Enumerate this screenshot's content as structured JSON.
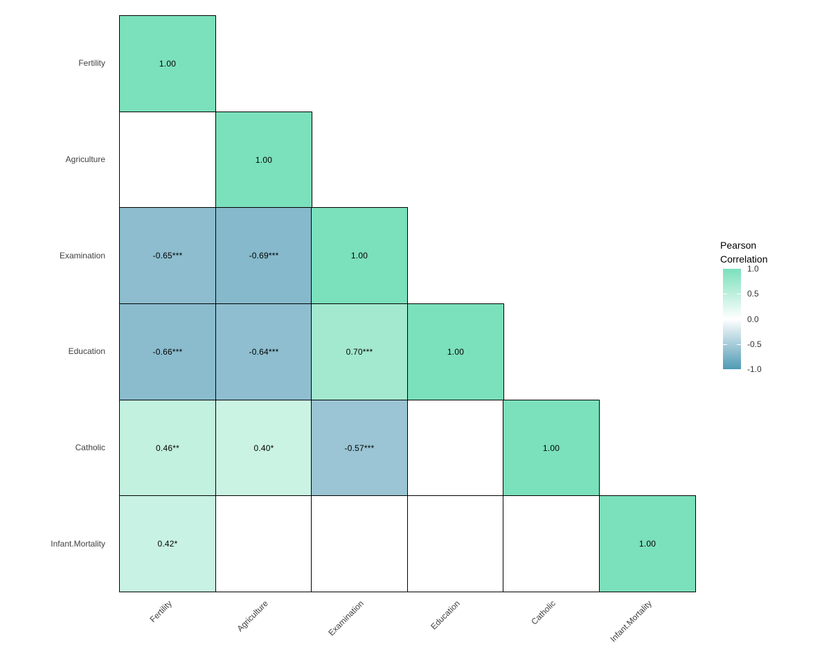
{
  "chart_data": {
    "type": "heatmap",
    "subtype": "correlation-matrix-lower-triangle",
    "variables": [
      "Fertility",
      "Agriculture",
      "Examination",
      "Education",
      "Catholic",
      "Infant.Mortality"
    ],
    "cells": [
      {
        "row": 0,
        "col": 0,
        "value": 1.0,
        "label": "1.00"
      },
      {
        "row": 1,
        "col": 0,
        "value": null,
        "label": ""
      },
      {
        "row": 1,
        "col": 1,
        "value": 1.0,
        "label": "1.00"
      },
      {
        "row": 2,
        "col": 0,
        "value": -0.65,
        "label": "-0.65***"
      },
      {
        "row": 2,
        "col": 1,
        "value": -0.69,
        "label": "-0.69***"
      },
      {
        "row": 2,
        "col": 2,
        "value": 1.0,
        "label": "1.00"
      },
      {
        "row": 3,
        "col": 0,
        "value": -0.66,
        "label": "-0.66***"
      },
      {
        "row": 3,
        "col": 1,
        "value": -0.64,
        "label": "-0.64***"
      },
      {
        "row": 3,
        "col": 2,
        "value": 0.7,
        "label": "0.70***"
      },
      {
        "row": 3,
        "col": 3,
        "value": 1.0,
        "label": "1.00"
      },
      {
        "row": 4,
        "col": 0,
        "value": 0.46,
        "label": "0.46**"
      },
      {
        "row": 4,
        "col": 1,
        "value": 0.4,
        "label": "0.40*"
      },
      {
        "row": 4,
        "col": 2,
        "value": -0.57,
        "label": "-0.57***"
      },
      {
        "row": 4,
        "col": 3,
        "value": null,
        "label": ""
      },
      {
        "row": 4,
        "col": 4,
        "value": 1.0,
        "label": "1.00"
      },
      {
        "row": 5,
        "col": 0,
        "value": 0.42,
        "label": "0.42*"
      },
      {
        "row": 5,
        "col": 1,
        "value": null,
        "label": ""
      },
      {
        "row": 5,
        "col": 2,
        "value": null,
        "label": ""
      },
      {
        "row": 5,
        "col": 3,
        "value": null,
        "label": ""
      },
      {
        "row": 5,
        "col": 4,
        "value": null,
        "label": ""
      },
      {
        "row": 5,
        "col": 5,
        "value": 1.0,
        "label": "1.00"
      }
    ],
    "colorscale": {
      "domain": [
        -1,
        1
      ],
      "high": "#7BE0BC",
      "mid": "#FFFFFF",
      "low": "#4F9AB4",
      "blank": "#FFFFFF",
      "border": "#000000"
    },
    "legend": {
      "title": "Pearson\nCorrelation",
      "position": "right",
      "ticks": [
        {
          "label": "1.0",
          "value": 1.0
        },
        {
          "label": "0.5",
          "value": 0.5
        },
        {
          "label": "0.0",
          "value": 0.0
        },
        {
          "label": "-0.5",
          "value": -0.5
        },
        {
          "label": "-1.0",
          "value": -1.0
        }
      ]
    },
    "grid": false,
    "x_tick_angle": 45
  }
}
